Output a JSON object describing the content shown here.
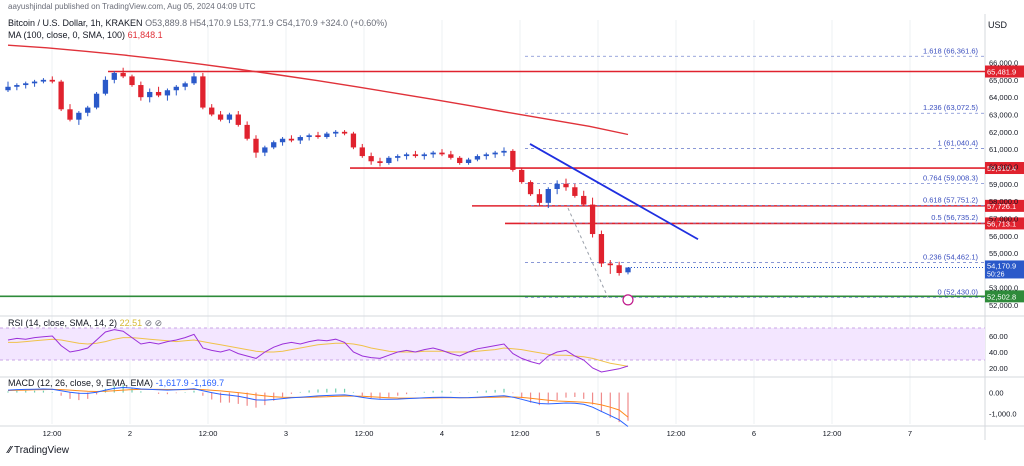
{
  "header": {
    "publish_line": "aayushjindal published on TradingView.com, Aug 05, 2024 04:09 UTC",
    "symbol_line": "Bitcoin / U.S. Dollar, 1h, KRAKEN",
    "ohlc": "O53,889.8 H54,170.9 L53,771.9 C54,170.9 +324.0 (+0.60%)",
    "ma_label": "MA (100, close, 0, SMA, 100)",
    "ma_value": "61,848.1"
  },
  "footer": {
    "brand": "TradingView"
  },
  "colors": {
    "up": "#2a59c9",
    "down": "#e0222e",
    "ma": "#e0323a",
    "trend": "#1f2fe0",
    "rsi_band": "#f3e6ff",
    "rsi_line": "#9b30d9",
    "macd_line": "#2962ff",
    "signal_line": "#ff8a1c",
    "support": "#2e8b3a"
  },
  "chart_data": [
    {
      "type": "candlestick",
      "title": "Bitcoin / U.S. Dollar, 1h, KRAKEN",
      "currency": "USD",
      "ylim": [
        51600,
        67300
      ],
      "y_ticks": [
        "66,000.0",
        "65,000.0",
        "64,000.0",
        "63,000.0",
        "62,000.0",
        "61,000.0",
        "60,000.0",
        "59,000.0",
        "58,000.0",
        "57,000.0",
        "56,000.0",
        "55,000.0",
        "53,000.0",
        "52,000.0"
      ],
      "x_ticks": [
        "12:00",
        "2",
        "12:00",
        "3",
        "12:00",
        "4",
        "12:00",
        "5",
        "12:00",
        "6",
        "12:00",
        "7"
      ],
      "candles": [
        [
          64400,
          64900,
          64300,
          64600
        ],
        [
          64600,
          64800,
          64400,
          64700
        ],
        [
          64700,
          64900,
          64500,
          64800
        ],
        [
          64800,
          65000,
          64600,
          64900
        ],
        [
          64900,
          65100,
          64800,
          65000
        ],
        [
          65000,
          65200,
          64800,
          64900
        ],
        [
          64900,
          65000,
          63200,
          63300
        ],
        [
          63300,
          63600,
          62600,
          62700
        ],
        [
          62700,
          63200,
          62400,
          63100
        ],
        [
          63100,
          63500,
          62900,
          63400
        ],
        [
          63400,
          64300,
          63300,
          64200
        ],
        [
          64200,
          65200,
          64100,
          65000
        ],
        [
          65000,
          65500,
          64800,
          65400
        ],
        [
          65400,
          65700,
          65100,
          65200
        ],
        [
          65200,
          65300,
          64600,
          64700
        ],
        [
          64700,
          64900,
          63800,
          64000
        ],
        [
          64000,
          64500,
          63700,
          64300
        ],
        [
          64300,
          64600,
          64000,
          64100
        ],
        [
          64100,
          64500,
          63800,
          64400
        ],
        [
          64400,
          64700,
          64100,
          64600
        ],
        [
          64600,
          64900,
          64400,
          64800
        ],
        [
          64800,
          65400,
          64700,
          65200
        ],
        [
          65200,
          65400,
          63300,
          63400
        ],
        [
          63400,
          63600,
          62900,
          63000
        ],
        [
          63000,
          63200,
          62600,
          62700
        ],
        [
          62700,
          63100,
          62500,
          63000
        ],
        [
          63000,
          63200,
          62300,
          62400
        ],
        [
          62400,
          62600,
          61500,
          61600
        ],
        [
          61600,
          61800,
          60500,
          60800
        ],
        [
          60800,
          61200,
          60600,
          61100
        ],
        [
          61100,
          61500,
          61000,
          61400
        ],
        [
          61400,
          61700,
          61200,
          61600
        ],
        [
          61600,
          61800,
          61400,
          61500
        ],
        [
          61500,
          61800,
          61300,
          61700
        ],
        [
          61700,
          61900,
          61500,
          61800
        ],
        [
          61800,
          62000,
          61600,
          61700
        ],
        [
          61700,
          62000,
          61600,
          61900
        ],
        [
          61900,
          62100,
          61700,
          62000
        ],
        [
          62000,
          62100,
          61800,
          61900
        ],
        [
          61900,
          62000,
          61000,
          61100
        ],
        [
          61100,
          61300,
          60500,
          60600
        ],
        [
          60600,
          60800,
          60100,
          60300
        ],
        [
          60300,
          60500,
          60000,
          60200
        ],
        [
          60200,
          60600,
          60100,
          60500
        ],
        [
          60500,
          60700,
          60300,
          60600
        ],
        [
          60600,
          60800,
          60400,
          60700
        ],
        [
          60700,
          60900,
          60500,
          60600
        ],
        [
          60600,
          60800,
          60400,
          60700
        ],
        [
          60700,
          60900,
          60500,
          60800
        ],
        [
          60800,
          61000,
          60600,
          60700
        ],
        [
          60700,
          60900,
          60400,
          60500
        ],
        [
          60500,
          60600,
          60100,
          60200
        ],
        [
          60200,
          60500,
          60100,
          60400
        ],
        [
          60400,
          60700,
          60300,
          60600
        ],
        [
          60600,
          60800,
          60400,
          60700
        ],
        [
          60700,
          60900,
          60500,
          60800
        ],
        [
          60800,
          61100,
          60600,
          60900
        ],
        [
          60900,
          61000,
          59700,
          59800
        ],
        [
          59800,
          59900,
          59000,
          59100
        ],
        [
          59100,
          59200,
          58300,
          58400
        ],
        [
          58400,
          58700,
          57700,
          57900
        ],
        [
          57900,
          58800,
          57600,
          58700
        ],
        [
          58700,
          59200,
          58400,
          59000
        ],
        [
          59000,
          59300,
          58600,
          58800
        ],
        [
          58800,
          59000,
          58200,
          58300
        ],
        [
          58300,
          58600,
          57700,
          57800
        ],
        [
          57800,
          58200,
          55900,
          56100
        ],
        [
          56100,
          56300,
          54200,
          54400
        ],
        [
          54400,
          54600,
          53800,
          54300
        ],
        [
          54300,
          54500,
          53700,
          53850
        ],
        [
          53889.8,
          54170.9,
          53771.9,
          54170.9
        ]
      ],
      "ma_100": [
        67000,
        66850,
        66650,
        66430,
        66180,
        65900,
        65600,
        65280,
        64950,
        64600,
        64230,
        63860,
        63480,
        63080,
        62700,
        62320,
        61848.1
      ],
      "trendline": {
        "from": 61300,
        "to": 55800
      },
      "horizontal_levels": [
        {
          "label": "65,481.9",
          "value": 65481.9,
          "color": "#e0222e"
        },
        {
          "label": "59,910.4",
          "value": 59910.4,
          "color": "#e0222e"
        },
        {
          "label": "57,726.1",
          "value": 57726.1,
          "color": "#e0222e"
        },
        {
          "label": "56,713.1",
          "value": 56713.1,
          "color": "#e0222e"
        },
        {
          "label": "52,502.8",
          "value": 52502.8,
          "color": "#2e8b3a"
        }
      ],
      "current_price": {
        "label": "54,170.9",
        "value": 54170.9,
        "countdown": "50:26"
      },
      "fibonacci": [
        {
          "label": "1.618 (66,361.6)",
          "value": 66361.6
        },
        {
          "label": "1.236 (63,072.5)",
          "value": 63072.5
        },
        {
          "label": "1 (61,040.4)",
          "value": 61040.4
        },
        {
          "label": "0.764 (59,008.3)",
          "value": 59008.3
        },
        {
          "label": "0.618 (57,751.2)",
          "value": 57751.2
        },
        {
          "label": "0.5 (56,735.2)",
          "value": 56735.2
        },
        {
          "label": "0.236 (54,462.1)",
          "value": 54462.1
        },
        {
          "label": "0 (52,430.0)",
          "value": 52430.0
        }
      ]
    },
    {
      "type": "line",
      "title": "RSI (14, close, SMA, 14, 2)",
      "label": "RSI (14, close, SMA, 14, 2)",
      "value_label": "22.51",
      "ylim": [
        10,
        80
      ],
      "band": [
        30,
        70
      ],
      "y_ticks": [
        "60.00",
        "40.00",
        "20.00"
      ],
      "rsi": [
        55,
        57,
        56,
        58,
        59,
        60,
        48,
        40,
        42,
        45,
        55,
        65,
        68,
        66,
        58,
        50,
        52,
        50,
        53,
        55,
        58,
        62,
        45,
        42,
        40,
        43,
        38,
        35,
        32,
        40,
        46,
        50,
        52,
        50,
        53,
        55,
        54,
        56,
        52,
        40,
        35,
        33,
        32,
        36,
        40,
        42,
        40,
        43,
        45,
        42,
        38,
        35,
        40,
        44,
        46,
        48,
        50,
        38,
        32,
        28,
        25,
        35,
        40,
        42,
        35,
        30,
        20,
        15,
        17,
        19,
        22.51
      ],
      "rsi_ma": [
        52,
        52,
        53,
        54,
        55,
        56,
        55,
        53,
        51,
        50,
        51,
        53,
        56,
        58,
        58,
        57,
        56,
        55,
        54,
        53,
        54,
        55,
        53,
        51,
        49,
        47,
        45,
        43,
        41,
        40,
        40,
        41,
        43,
        45,
        47,
        49,
        50,
        51,
        51,
        50,
        48,
        45,
        43,
        41,
        40,
        40,
        40,
        41,
        41,
        41,
        40,
        40,
        40,
        41,
        42,
        43,
        45,
        44,
        43,
        41,
        39,
        37,
        36,
        36,
        35,
        34,
        32,
        29,
        26,
        24,
        22
      ]
    },
    {
      "type": "bar",
      "title": "MACD (12, 26, close, 9, EMA, EMA)",
      "label": "MACD (12, 26, close, 9, EMA, EMA)",
      "values_label": "-1,617.9  -1,169.7",
      "ylim": [
        -1500,
        600
      ],
      "y_ticks": [
        "0.00",
        "-1,000.0"
      ],
      "macd": [
        120,
        140,
        150,
        160,
        170,
        160,
        90,
        20,
        -30,
        -40,
        20,
        120,
        200,
        240,
        220,
        170,
        150,
        130,
        120,
        130,
        150,
        180,
        90,
        0,
        -80,
        -120,
        -180,
        -260,
        -350,
        -360,
        -330,
        -290,
        -250,
        -220,
        -190,
        -160,
        -140,
        -120,
        -110,
        -160,
        -230,
        -290,
        -320,
        -320,
        -310,
        -290,
        -270,
        -250,
        -230,
        -220,
        -230,
        -250,
        -240,
        -220,
        -200,
        -180,
        -150,
        -220,
        -320,
        -430,
        -520,
        -540,
        -520,
        -500,
        -510,
        -560,
        -700,
        -900,
        -1100,
        -1300,
        -1617.9
      ],
      "signal": [
        100,
        110,
        120,
        130,
        140,
        150,
        140,
        120,
        90,
        60,
        50,
        60,
        90,
        120,
        140,
        150,
        150,
        150,
        145,
        140,
        142,
        150,
        140,
        110,
        80,
        40,
        0,
        -50,
        -110,
        -160,
        -200,
        -220,
        -230,
        -230,
        -225,
        -210,
        -200,
        -185,
        -170,
        -170,
        -180,
        -200,
        -225,
        -245,
        -260,
        -265,
        -265,
        -262,
        -258,
        -250,
        -245,
        -245,
        -244,
        -240,
        -232,
        -222,
        -210,
        -210,
        -230,
        -270,
        -320,
        -370,
        -400,
        -420,
        -440,
        -460,
        -510,
        -590,
        -700,
        -830,
        -1169.7
      ]
    }
  ]
}
